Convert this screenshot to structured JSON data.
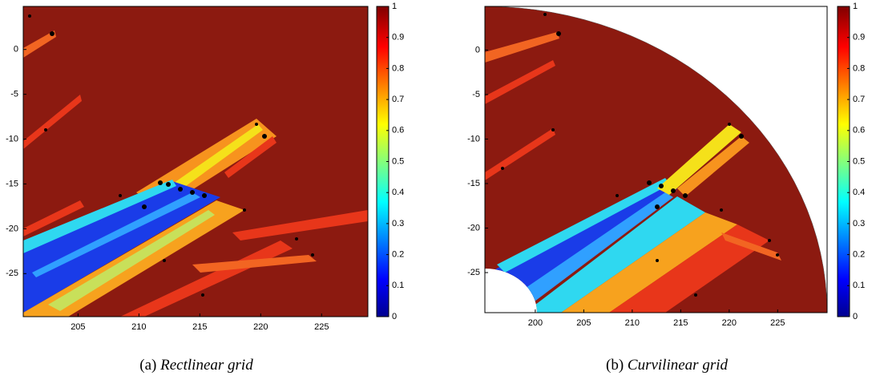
{
  "chart_data": [
    {
      "type": "heatmap",
      "colormap": "jet",
      "caption_label": "(a)",
      "caption": "Rectlinear grid",
      "xlim": [
        200.5,
        228.8
      ],
      "xticks": [
        205,
        210,
        215,
        220,
        225
      ],
      "ylim": [
        -29.8,
        4.8
      ],
      "yticks": [
        0,
        -5,
        -10,
        -15,
        -20,
        -25
      ],
      "colorbar_lim": [
        0,
        1
      ],
      "colorbar_ticks": [
        0,
        0.1,
        0.2,
        0.3,
        0.4,
        0.5,
        0.6,
        0.7,
        0.8,
        0.9,
        1
      ]
    },
    {
      "type": "heatmap",
      "colormap": "jet",
      "caption_label": "(b)",
      "caption": "Curvilinear grid",
      "xlim": [
        194.8,
        230.1
      ],
      "xticks": [
        200,
        205,
        210,
        215,
        220,
        225
      ],
      "ylim": [
        -29.5,
        4.9
      ],
      "yticks": [
        0,
        -5,
        -10,
        -15,
        -20,
        -25
      ],
      "colorbar_lim": [
        0,
        1
      ],
      "colorbar_ticks": [
        0,
        0.1,
        0.2,
        0.3,
        0.4,
        0.5,
        0.6,
        0.7,
        0.8,
        0.9,
        1
      ]
    }
  ]
}
